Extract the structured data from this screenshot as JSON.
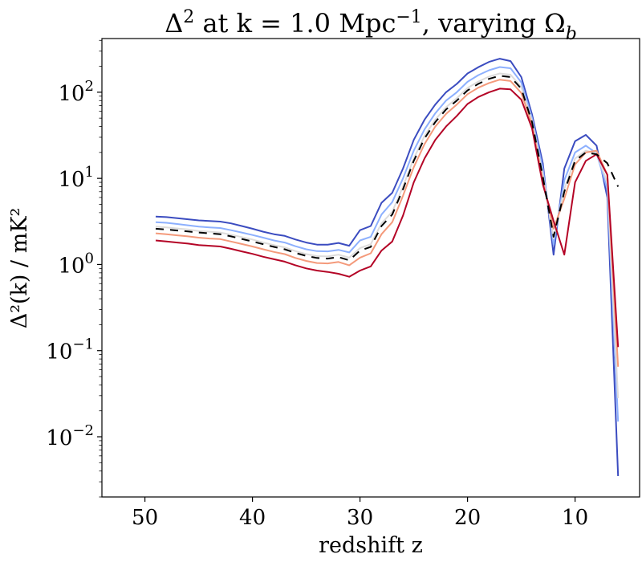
{
  "chart_data": {
    "type": "line",
    "title": "Δ² at k = 1.0 Mpc⁻¹, varying Ω_b",
    "title_parts": {
      "pre": "Δ",
      "sup": "2",
      "mid": " at k = 1.0 Mpc",
      "sup2": "−1",
      "post": ", varying Ω",
      "sub": "b"
    },
    "xlabel": "redshift z",
    "ylabel": "Δ²(k) / mK²",
    "xlim": [
      54,
      4
    ],
    "ylim": [
      0.002,
      420
    ],
    "yscale": "log",
    "xticks": [
      50,
      40,
      30,
      20,
      10
    ],
    "yticks": [
      {
        "value": 0.01,
        "base": "10",
        "exp": "−2"
      },
      {
        "value": 0.1,
        "base": "10",
        "exp": "−1"
      },
      {
        "value": 1,
        "base": "10",
        "exp": "0"
      },
      {
        "value": 10,
        "base": "10",
        "exp": "1"
      },
      {
        "value": 100,
        "base": "10",
        "exp": "2"
      }
    ],
    "x": [
      49,
      48,
      47,
      46,
      45,
      44,
      43,
      42,
      41,
      40,
      39,
      38,
      37,
      36,
      35,
      34,
      33,
      32,
      31,
      30,
      29,
      28,
      27,
      26,
      25,
      24,
      23,
      22,
      21,
      20,
      19,
      18,
      17,
      16,
      15,
      14,
      13,
      12,
      11,
      10,
      9,
      8,
      7,
      6
    ],
    "series": [
      {
        "color": "#3b4cc0",
        "values": [
          3.6,
          3.55,
          3.45,
          3.35,
          3.25,
          3.2,
          3.15,
          3.0,
          2.8,
          2.6,
          2.4,
          2.25,
          2.15,
          1.95,
          1.8,
          1.7,
          1.7,
          1.78,
          1.65,
          2.5,
          2.8,
          5.2,
          6.8,
          13,
          28,
          48,
          72,
          100,
          125,
          165,
          195,
          225,
          245,
          230,
          150,
          55,
          15,
          1.3,
          13,
          27,
          32,
          24,
          6,
          0.0035
        ]
      },
      {
        "color": "#8db0fe",
        "values": [
          3.1,
          3.05,
          2.95,
          2.85,
          2.75,
          2.7,
          2.65,
          2.5,
          2.35,
          2.2,
          2.05,
          1.9,
          1.8,
          1.63,
          1.5,
          1.43,
          1.42,
          1.48,
          1.38,
          1.9,
          2.1,
          3.8,
          5.3,
          10,
          21,
          37,
          57,
          80,
          100,
          132,
          158,
          180,
          196,
          190,
          130,
          50,
          13,
          1.7,
          9.5,
          20,
          24,
          19.5,
          7.5,
          0.015
        ]
      },
      {
        "color": "#dddcdc",
        "values": [
          2.75,
          2.7,
          2.62,
          2.55,
          2.45,
          2.4,
          2.35,
          2.22,
          2.08,
          1.95,
          1.8,
          1.68,
          1.58,
          1.43,
          1.32,
          1.25,
          1.24,
          1.3,
          1.2,
          1.55,
          1.72,
          3.0,
          4.1,
          8,
          17,
          31,
          48,
          67,
          85,
          112,
          133,
          152,
          165,
          160,
          115,
          46,
          11,
          2.0,
          7.5,
          17,
          21,
          19.5,
          9,
          0.028
        ]
      },
      {
        "color": "#f49a7b",
        "values": [
          2.3,
          2.25,
          2.18,
          2.12,
          2.05,
          2.0,
          1.97,
          1.85,
          1.73,
          1.62,
          1.5,
          1.4,
          1.32,
          1.19,
          1.1,
          1.04,
          1.03,
          1.07,
          0.98,
          1.2,
          1.35,
          2.25,
          3.1,
          6.3,
          13.5,
          25,
          40,
          56,
          72,
          95,
          113,
          128,
          140,
          135,
          98,
          42,
          9.5,
          2.6,
          5.8,
          14.5,
          20,
          21,
          11,
          0.065
        ]
      },
      {
        "color": "#b40426",
        "values": [
          1.9,
          1.85,
          1.8,
          1.75,
          1.68,
          1.65,
          1.62,
          1.52,
          1.42,
          1.33,
          1.23,
          1.15,
          1.08,
          0.98,
          0.9,
          0.85,
          0.82,
          0.78,
          0.72,
          0.85,
          0.95,
          1.45,
          1.85,
          3.7,
          9,
          17,
          28,
          40,
          53,
          73,
          88,
          100,
          110,
          108,
          82,
          38,
          8.5,
          3.2,
          1.3,
          9,
          16,
          19,
          11,
          0.11
        ]
      },
      {
        "color": "#000000",
        "dashed": true,
        "values": [
          2.6,
          2.55,
          2.48,
          2.42,
          2.35,
          2.3,
          2.25,
          2.12,
          1.98,
          1.85,
          1.72,
          1.6,
          1.5,
          1.36,
          1.26,
          1.19,
          1.17,
          1.22,
          1.12,
          1.45,
          1.6,
          2.8,
          3.8,
          7.5,
          16,
          29,
          45,
          63,
          80,
          105,
          125,
          143,
          155,
          150,
          110,
          45,
          10.5,
          2.1,
          7,
          16,
          20,
          19,
          15,
          8
        ]
      }
    ],
    "grid": false,
    "legend": "none"
  }
}
